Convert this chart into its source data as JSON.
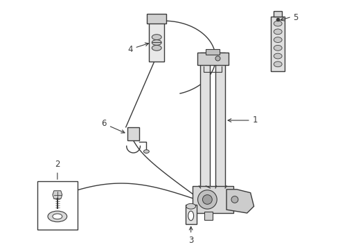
{
  "background_color": "#ffffff",
  "line_color": "#3a3a3a",
  "line_width": 1.0,
  "label_fontsize": 8.5,
  "figsize": [
    4.89,
    3.6
  ],
  "dpi": 100
}
